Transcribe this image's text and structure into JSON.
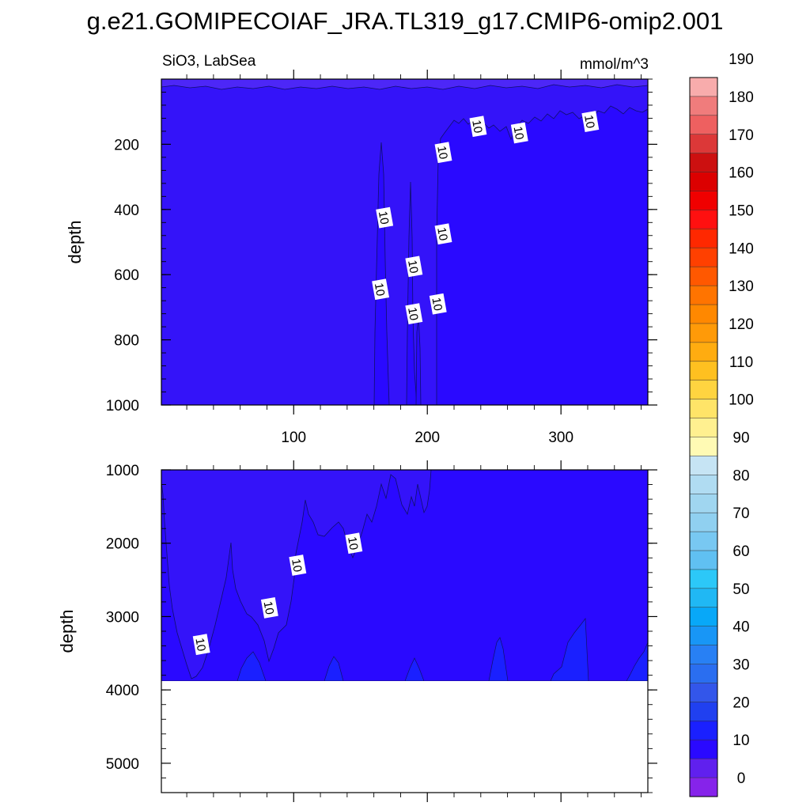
{
  "title": "g.e21.GOMIPECOIAF_JRA.TL319_g17.CMIP6-omip2.001",
  "subtitle_left": "SiO3, LabSea",
  "subtitle_right": "mmol/m^3",
  "chart_data": {
    "type": "heatmap",
    "title": "g.e21.GOMIPECOIAF_JRA.TL319_g17.CMIP6-omip2.001",
    "variable": "SiO3",
    "region": "LabSea",
    "units": "mmol/m^3",
    "x_range": [
      1,
      365
    ],
    "x_ticks": [
      100,
      200,
      300
    ],
    "x_tick_labels": [
      "100",
      "200",
      "300"
    ],
    "panels": [
      {
        "name": "upper",
        "ylabel": "depth",
        "ylim": [
          0,
          1000
        ],
        "y_ticks": [
          200,
          400,
          600,
          800,
          1000
        ],
        "y_tick_labels": [
          "200",
          "400",
          "600",
          "800",
          "1000"
        ],
        "x_tick_labels_shown": true,
        "fill_levels": {
          "surface_band": "0-10",
          "main": "10-20",
          "deep_columns": "20-30"
        },
        "contour_labels": [
          {
            "text": "10",
            "x": 238,
            "y": 145
          },
          {
            "text": "10",
            "x": 269,
            "y": 165
          },
          {
            "text": "10",
            "x": 322,
            "y": 130
          },
          {
            "text": "10",
            "x": 212,
            "y": 225
          },
          {
            "text": "10",
            "x": 168,
            "y": 425
          },
          {
            "text": "10",
            "x": 212,
            "y": 475
          },
          {
            "text": "10",
            "x": 190,
            "y": 575
          },
          {
            "text": "10",
            "x": 165,
            "y": 645
          },
          {
            "text": "10",
            "x": 208,
            "y": 690
          },
          {
            "text": "10",
            "x": 190,
            "y": 720
          }
        ]
      },
      {
        "name": "lower",
        "ylabel": "depth",
        "ylim": [
          1000,
          5400
        ],
        "y_ticks": [
          1000,
          2000,
          3000,
          4000,
          5000
        ],
        "y_tick_labels": [
          "1000",
          "2000",
          "3000",
          "4000",
          "5000"
        ],
        "x_tick_labels_shown": false,
        "bottom_depth": 3880,
        "contour_labels": [
          {
            "text": "10",
            "x": 145,
            "y": 2000
          },
          {
            "text": "10",
            "x": 103,
            "y": 2300
          },
          {
            "text": "10",
            "x": 82,
            "y": 2880
          },
          {
            "text": "10",
            "x": 31,
            "y": 3380
          }
        ]
      }
    ],
    "colorbar": {
      "labels": [
        "0",
        "10",
        "20",
        "30",
        "40",
        "50",
        "60",
        "70",
        "80",
        "90",
        "100",
        "110",
        "120",
        "130",
        "140",
        "150",
        "160",
        "170",
        "180",
        "190"
      ],
      "colors": [
        "#8623ea",
        "#6020ee",
        "#2a09ff",
        "#1a20ff",
        "#2040f0",
        "#3356ea",
        "#2a6ef0",
        "#2880f4",
        "#1896f6",
        "#08a8f8",
        "#20b8f4",
        "#2cc8f8",
        "#60c0f2",
        "#78c8f2",
        "#90d0f0",
        "#a0d6f0",
        "#b0dcf2",
        "#c6e4f4",
        "#fffab4",
        "#fff090",
        "#ffe468",
        "#ffd440",
        "#ffc020",
        "#ffac10",
        "#ff9a08",
        "#ff8800",
        "#ff7400",
        "#ff5800",
        "#ff4000",
        "#ff2800",
        "#ff1010",
        "#f00000",
        "#dc0000",
        "#cc1010",
        "#dc3838",
        "#ee6060",
        "#f07c7c",
        "#f8acac"
      ]
    }
  }
}
